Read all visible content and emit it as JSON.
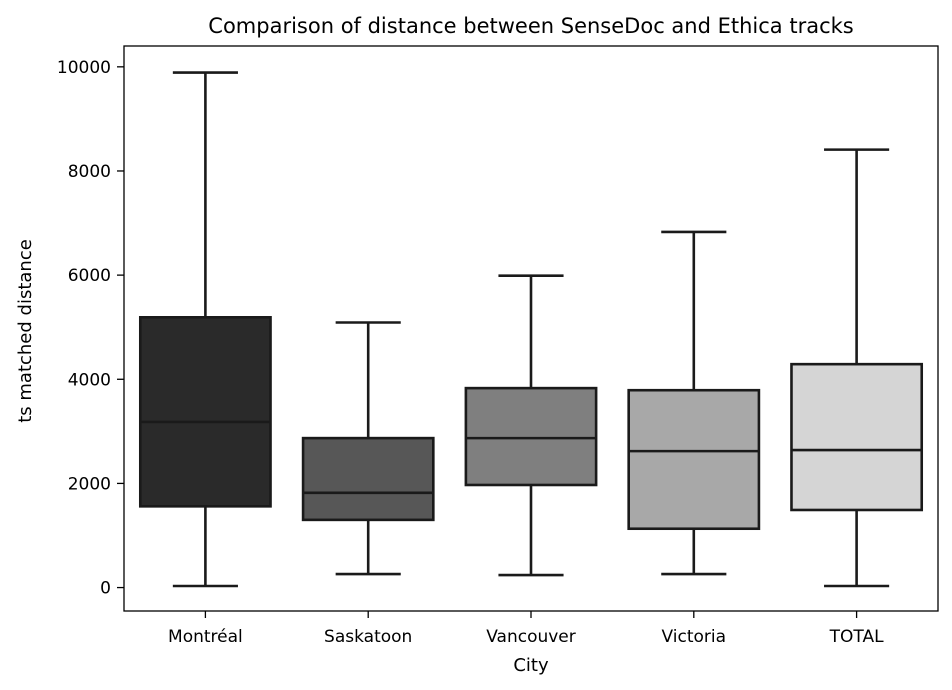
{
  "chart_data": {
    "type": "boxplot",
    "title": "Comparison of distance between SenseDoc and Ethica tracks",
    "xlabel": "City",
    "ylabel": "ts matched distance",
    "ylim": [
      -450,
      10400
    ],
    "yticks": [
      0,
      2000,
      4000,
      6000,
      8000,
      10000
    ],
    "yticklabels": [
      "0",
      "2000",
      "4000",
      "6000",
      "8000",
      "10000"
    ],
    "categories": [
      "Montréal",
      "Saskatoon",
      "Vancouver",
      "Victoria",
      "TOTAL"
    ],
    "boxes": [
      {
        "category": "Montréal",
        "whisker_low": 30,
        "q1": 1560,
        "median": 3180,
        "q3": 5190,
        "whisker_high": 9890,
        "color": "#2a2a2a"
      },
      {
        "category": "Saskatoon",
        "whisker_low": 260,
        "q1": 1300,
        "median": 1820,
        "q3": 2870,
        "whisker_high": 5090,
        "color": "#575757"
      },
      {
        "category": "Vancouver",
        "whisker_low": 240,
        "q1": 1970,
        "median": 2870,
        "q3": 3830,
        "whisker_high": 5990,
        "color": "#7f7f7f"
      },
      {
        "category": "Victoria",
        "whisker_low": 260,
        "q1": 1130,
        "median": 2620,
        "q3": 3790,
        "whisker_high": 6830,
        "color": "#a8a8a8"
      },
      {
        "category": "TOTAL",
        "whisker_low": 30,
        "q1": 1490,
        "median": 2640,
        "q3": 4290,
        "whisker_high": 8410,
        "color": "#d5d5d5"
      }
    ],
    "grid": false,
    "legend": "none"
  }
}
